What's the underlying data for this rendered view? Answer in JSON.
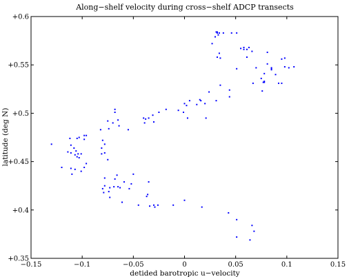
{
  "chart_data": {
    "type": "scatter",
    "title": "Along−shelf velocity during cross−shelf ADCP transects",
    "xlabel": "detided barotropic u−velocity",
    "ylabel": "latitude (deg N)",
    "xlim": [
      -0.15,
      0.15
    ],
    "ylim": [
      40.35,
      40.6
    ],
    "x_ticks": [
      -0.15,
      -0.1,
      -0.05,
      0,
      0.05,
      0.1,
      0.15
    ],
    "x_tick_labels": [
      "−0.15",
      "−0.1",
      "−0.05",
      "0",
      "0.05",
      "0.1",
      "0.15"
    ],
    "y_ticks": [
      40.35,
      40.4,
      40.45,
      40.5,
      40.55,
      40.6
    ],
    "y_tick_labels": [
      "+0.35",
      "+0.4",
      "+0.45",
      "+0.5",
      "+0.55",
      "+0.6"
    ],
    "grid": false,
    "legend": "none",
    "marker_color": "#0000ff",
    "x": [
      0.031,
      0.032,
      0.033,
      0.034,
      0.03,
      0.032,
      0.027,
      0.038,
      0.046,
      0.051,
      0.034,
      0.032,
      0.035,
      0.055,
      0.058,
      0.058,
      0.061,
      0.063,
      0.061,
      0.066,
      0.07,
      0.081,
      0.081,
      0.085,
      0.085,
      0.078,
      0.075,
      0.067,
      0.077,
      0.098,
      0.095,
      0.098,
      0.102,
      0.107,
      0.085,
      0.089,
      0.078,
      0.078,
      0.092,
      0.095,
      0.076,
      0.051,
      0.044,
      0.044,
      0.035,
      0.024,
      0.031,
      0.02,
      0.015,
      0.016,
      0.012,
      0.005,
      0.002,
      -0.001,
      -0.006,
      0.0,
      0.003,
      0.021,
      -0.018,
      -0.025,
      -0.038,
      -0.031,
      -0.035,
      -0.03,
      -0.04,
      -0.039,
      -0.055,
      -0.07,
      -0.068,
      -0.068,
      -0.065,
      -0.075,
      -0.074,
      -0.08,
      -0.078,
      -0.081,
      -0.078,
      -0.064,
      -0.082,
      -0.096,
      -0.098,
      -0.103,
      -0.105,
      -0.112,
      -0.111,
      -0.098,
      -0.108,
      -0.106,
      -0.107,
      -0.104,
      -0.101,
      -0.105,
      -0.103,
      -0.111,
      -0.114,
      -0.13,
      -0.12,
      -0.096,
      -0.098,
      -0.101,
      -0.111,
      -0.107,
      -0.11,
      -0.081,
      -0.075,
      -0.078,
      -0.068,
      -0.066,
      -0.059,
      -0.063,
      -0.05,
      -0.054,
      -0.073,
      -0.078,
      -0.08,
      -0.079,
      -0.065,
      -0.069,
      -0.074,
      -0.073,
      -0.052,
      -0.035,
      -0.036,
      -0.03,
      -0.026,
      -0.034,
      -0.029,
      -0.037,
      -0.061,
      -0.045,
      -0.011,
      0.0,
      0.017,
      0.043,
      0.051,
      0.066,
      0.068,
      0.064,
      0.051
    ],
    "y": [
      40.584,
      40.584,
      40.581,
      40.583,
      40.579,
      40.583,
      40.572,
      40.583,
      40.583,
      40.583,
      40.562,
      40.558,
      40.557,
      40.567,
      40.568,
      40.566,
      40.566,
      40.568,
      40.558,
      40.564,
      40.547,
      40.563,
      40.551,
      40.545,
      40.547,
      40.541,
      40.536,
      40.531,
      40.532,
      40.557,
      40.556,
      40.548,
      40.547,
      40.548,
      40.546,
      40.54,
      40.533,
      40.532,
      40.531,
      40.531,
      40.523,
      40.546,
      40.524,
      40.517,
      40.529,
      40.522,
      40.513,
      40.51,
      40.514,
      40.513,
      40.509,
      40.513,
      40.508,
      40.501,
      40.503,
      40.51,
      40.495,
      40.495,
      40.504,
      40.501,
      40.494,
      40.498,
      40.495,
      40.491,
      40.495,
      40.49,
      40.483,
      40.49,
      40.504,
      40.501,
      40.493,
      40.492,
      40.484,
      40.472,
      40.468,
      40.464,
      40.459,
      40.487,
      40.483,
      40.477,
      40.477,
      40.475,
      40.474,
      40.474,
      40.467,
      40.473,
      40.464,
      40.461,
      40.457,
      40.458,
      40.458,
      40.455,
      40.454,
      40.459,
      40.46,
      40.468,
      40.444,
      40.448,
      40.444,
      40.44,
      40.443,
      40.442,
      40.437,
      40.458,
      40.452,
      40.433,
      40.432,
      40.436,
      40.429,
      40.423,
      40.437,
      40.422,
      40.423,
      40.425,
      40.422,
      40.418,
      40.424,
      40.424,
      40.419,
      40.413,
      40.427,
      40.429,
      40.416,
      40.405,
      40.405,
      40.404,
      40.403,
      40.414,
      40.408,
      40.405,
      40.405,
      40.41,
      40.403,
      40.397,
      40.39,
      40.384,
      40.378,
      40.369,
      40.372
    ]
  }
}
